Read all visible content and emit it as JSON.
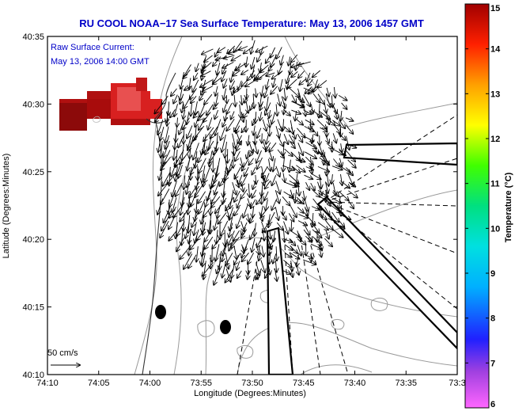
{
  "chart_data": {
    "type": "vector-field map",
    "title": "RU COOL  NOAA−17  Sea Surface Temperature:  May 13, 2006 1457 GMT",
    "annotation_line1": "Raw Surface Current:",
    "annotation_line2": "May 13, 2006 14:00 GMT",
    "xlabel": "Longitude (Degrees:Minutes)",
    "ylabel": "Latitude (Degrees:Minutes)",
    "x_ticks": [
      "74:10",
      "74:05",
      "74:00",
      "73:55",
      "73:50",
      "73:45",
      "73:40",
      "73:35",
      "73:3"
    ],
    "y_ticks": [
      "40:35",
      "40:30",
      "40:25",
      "40:20",
      "40:15",
      "40:10"
    ],
    "xlim_minutes_west": [
      10,
      -30
    ],
    "ylim_minutes_north": [
      10,
      35
    ],
    "scale_label": "50 cm/s",
    "colorbar": {
      "label": "Temperature (°C)",
      "ticks": [
        "15",
        "14",
        "13",
        "12",
        "11",
        "10",
        "9",
        "8",
        "7",
        "6"
      ],
      "range": [
        6,
        15
      ]
    },
    "sst_patch_range_c": [
      14.2,
      15
    ]
  }
}
